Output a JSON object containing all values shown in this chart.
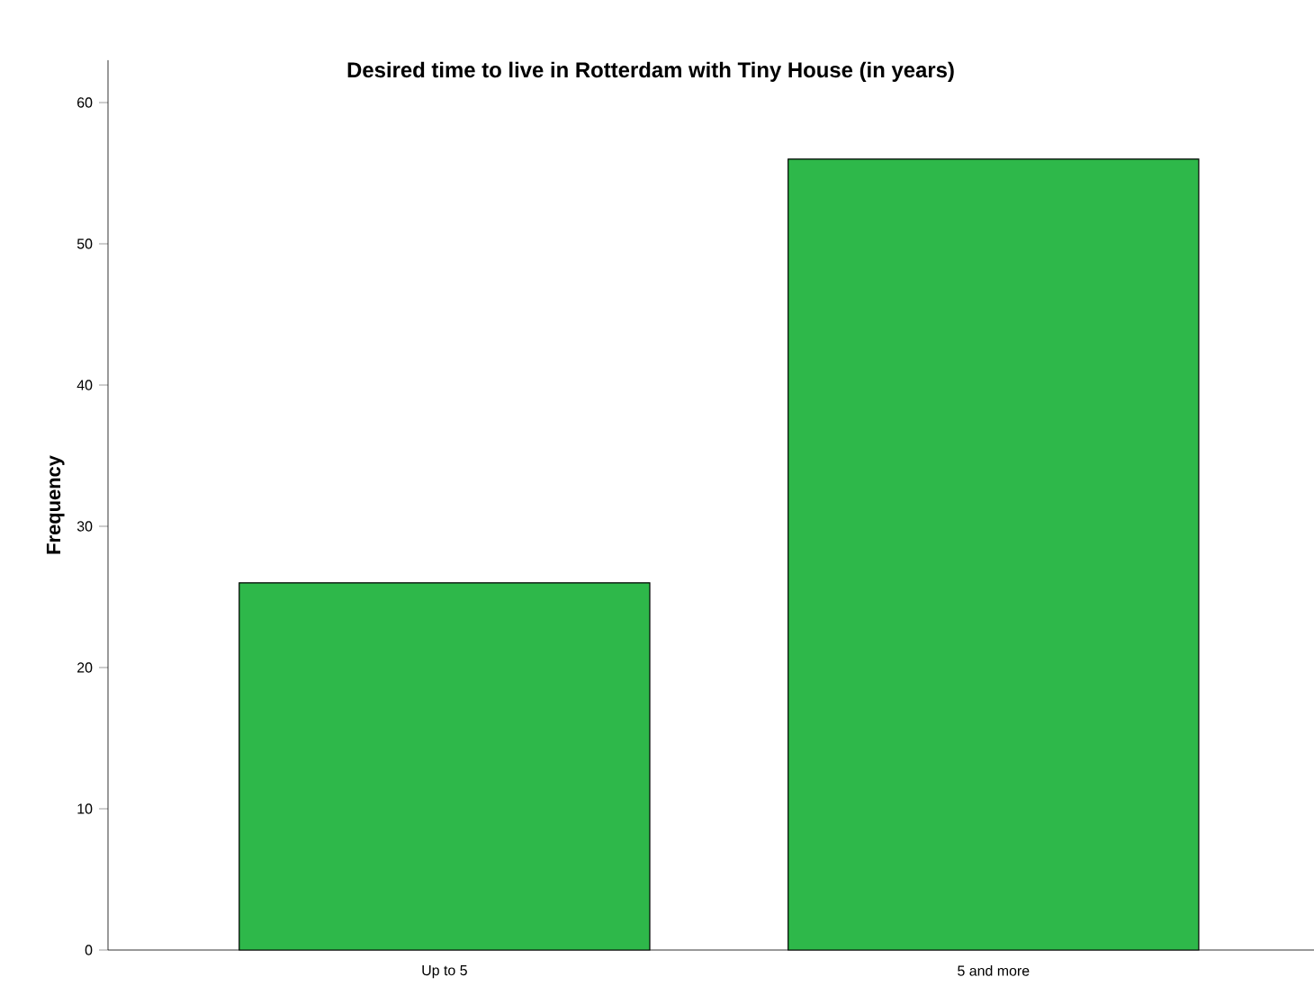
{
  "chart_data": {
    "type": "bar",
    "title": "Desired time to live in Rotterdam with Tiny House (in years)",
    "ylabel": "Frequency",
    "categories": [
      "Up to 5",
      "5 and more"
    ],
    "values": [
      26,
      56
    ],
    "color": "#2eb84a",
    "ylim": [
      0,
      63
    ],
    "yticks": [
      0,
      10,
      20,
      30,
      40,
      50,
      60
    ],
    "grid": false
  }
}
